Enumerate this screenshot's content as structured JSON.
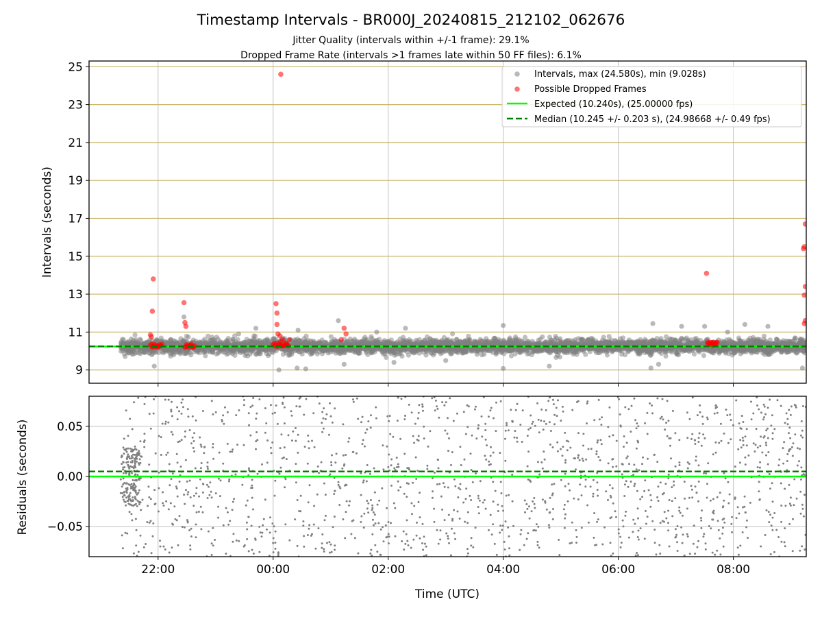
{
  "title": "Timestamp Intervals - BR000J_20240815_212102_062676",
  "subtitle_1": "Jitter Quality (intervals within +/-1 frame): 29.1%",
  "subtitle_2": "Dropped Frame Rate (intervals >1 frames late within 50 FF files): 6.1%",
  "colors": {
    "intervals": "#808080",
    "dropped": "#ff0000",
    "expected": "#00ff00",
    "median": "#008000",
    "hgrid_top": "#c8b464",
    "grid": "#b0b0b0"
  },
  "chart_data": [
    {
      "type": "scatter",
      "panel": "top",
      "ylabel": "Intervals (seconds)",
      "x_axis": "time (UTC), shared with bottom panel",
      "xlim": [
        "2024-08-15 20:48",
        "2024-08-16 09:16"
      ],
      "ylim": [
        8.3,
        25.3
      ],
      "yticks": [
        "9",
        "11",
        "13",
        "15",
        "17",
        "19",
        "21",
        "23",
        "25"
      ],
      "grid": true,
      "legend_position": "top-right",
      "legend": [
        "Intervals, max (24.580s), min (9.028s)",
        "Possible Dropped Frames",
        "Expected (10.240s), (25.00000 fps)",
        "Median (10.245 +/- 0.203 s), (24.98668 +/- 0.49 fps)"
      ],
      "series": [
        {
          "name": "Intervals, max (24.580s), min (9.028s)",
          "kind": "points",
          "time_range": [
            "21:21",
            "09:16"
          ],
          "center": 10.245,
          "spread_sd": 0.203,
          "point_count_approx": 4200,
          "outliers": [
            {
              "x": "21:56",
              "y": 9.2
            },
            {
              "x": "22:27",
              "y": 11.8
            },
            {
              "x": "23:24",
              "y": 10.9
            },
            {
              "x": "23:42",
              "y": 11.2
            },
            {
              "x": "00:06",
              "y": 9.0
            },
            {
              "x": "00:26",
              "y": 11.1
            },
            {
              "x": "00:25",
              "y": 9.1
            },
            {
              "x": "00:34",
              "y": 9.06
            },
            {
              "x": "01:08",
              "y": 11.6
            },
            {
              "x": "01:14",
              "y": 9.3
            },
            {
              "x": "01:48",
              "y": 11.0
            },
            {
              "x": "02:06",
              "y": 9.4
            },
            {
              "x": "02:18",
              "y": 11.2
            },
            {
              "x": "03:00",
              "y": 9.5
            },
            {
              "x": "04:00",
              "y": 11.35
            },
            {
              "x": "04:00",
              "y": 9.08
            },
            {
              "x": "04:48",
              "y": 9.2
            },
            {
              "x": "06:34",
              "y": 9.1
            },
            {
              "x": "06:36",
              "y": 11.45
            },
            {
              "x": "06:42",
              "y": 9.3
            },
            {
              "x": "07:06",
              "y": 11.3
            },
            {
              "x": "07:30",
              "y": 11.3
            },
            {
              "x": "07:54",
              "y": 11.0
            },
            {
              "x": "08:12",
              "y": 11.4
            },
            {
              "x": "08:36",
              "y": 11.3
            },
            {
              "x": "09:12",
              "y": 9.1
            }
          ]
        },
        {
          "name": "Possible Dropped Frames",
          "kind": "points",
          "clusters": [
            {
              "x_range": [
                "21:52",
                "22:04"
              ],
              "y": 10.28,
              "count": 14
            },
            {
              "x_range": [
                "22:28",
                "22:38"
              ],
              "y": 10.28,
              "count": 12
            },
            {
              "x_range": [
                "00:00",
                "00:16"
              ],
              "y": 10.32,
              "count": 16
            },
            {
              "x_range": [
                "07:33",
                "07:43"
              ],
              "y": 10.38,
              "count": 14
            }
          ],
          "points": [
            {
              "x": "21:52",
              "y": 10.85
            },
            {
              "x": "21:53",
              "y": 10.75
            },
            {
              "x": "21:54",
              "y": 12.1
            },
            {
              "x": "21:55",
              "y": 13.8
            },
            {
              "x": "22:27",
              "y": 12.55
            },
            {
              "x": "22:28",
              "y": 11.5
            },
            {
              "x": "22:29",
              "y": 11.3
            },
            {
              "x": "00:03",
              "y": 12.5
            },
            {
              "x": "00:04",
              "y": 12.0
            },
            {
              "x": "00:04",
              "y": 11.4
            },
            {
              "x": "00:05",
              "y": 10.9
            },
            {
              "x": "00:07",
              "y": 10.8
            },
            {
              "x": "00:08",
              "y": 10.5
            },
            {
              "x": "00:10",
              "y": 10.6
            },
            {
              "x": "00:13",
              "y": 10.4
            },
            {
              "x": "00:17",
              "y": 10.6
            },
            {
              "x": "00:08",
              "y": 24.6
            },
            {
              "x": "01:11",
              "y": 10.6
            },
            {
              "x": "01:14",
              "y": 11.2
            },
            {
              "x": "01:16",
              "y": 10.9
            },
            {
              "x": "07:32",
              "y": 14.1
            },
            {
              "x": "09:15",
              "y": 16.7
            },
            {
              "x": "09:14",
              "y": 15.5
            },
            {
              "x": "09:13",
              "y": 15.4
            },
            {
              "x": "09:15",
              "y": 13.4
            },
            {
              "x": "09:14",
              "y": 12.95
            },
            {
              "x": "09:15",
              "y": 11.6
            },
            {
              "x": "09:14",
              "y": 11.45
            }
          ]
        },
        {
          "name": "Expected (10.240s), (25.00000 fps)",
          "kind": "hline",
          "y": 10.24
        },
        {
          "name": "Median (10.245 +/- 0.203 s), (24.98668 +/- 0.49 fps)",
          "kind": "hline_dashed",
          "y": 10.245
        }
      ]
    },
    {
      "type": "scatter",
      "panel": "bottom",
      "xlabel": "Time (UTC)",
      "ylabel": "Residuals (seconds)",
      "xlim": [
        "2024-08-15 20:48",
        "2024-08-16 09:16"
      ],
      "xticks": [
        "22:00",
        "00:00",
        "02:00",
        "04:00",
        "06:00",
        "08:00"
      ],
      "ylim": [
        -0.08,
        0.08
      ],
      "yticks": [
        "0.05",
        "0.00",
        "−0.05"
      ],
      "grid": true,
      "series": [
        {
          "name": "residuals",
          "kind": "points",
          "time_range": [
            "21:21",
            "09:16"
          ],
          "value_range": [
            -0.08,
            0.08
          ],
          "dense_start": {
            "x_range": [
              "21:21",
              "21:42"
            ],
            "y_range": [
              -0.03,
              0.03
            ]
          },
          "point_count_approx": 1500
        },
        {
          "name": "expected",
          "kind": "hline",
          "y": 0.0
        },
        {
          "name": "median",
          "kind": "hline_dashed",
          "y": 0.005
        }
      ]
    }
  ]
}
